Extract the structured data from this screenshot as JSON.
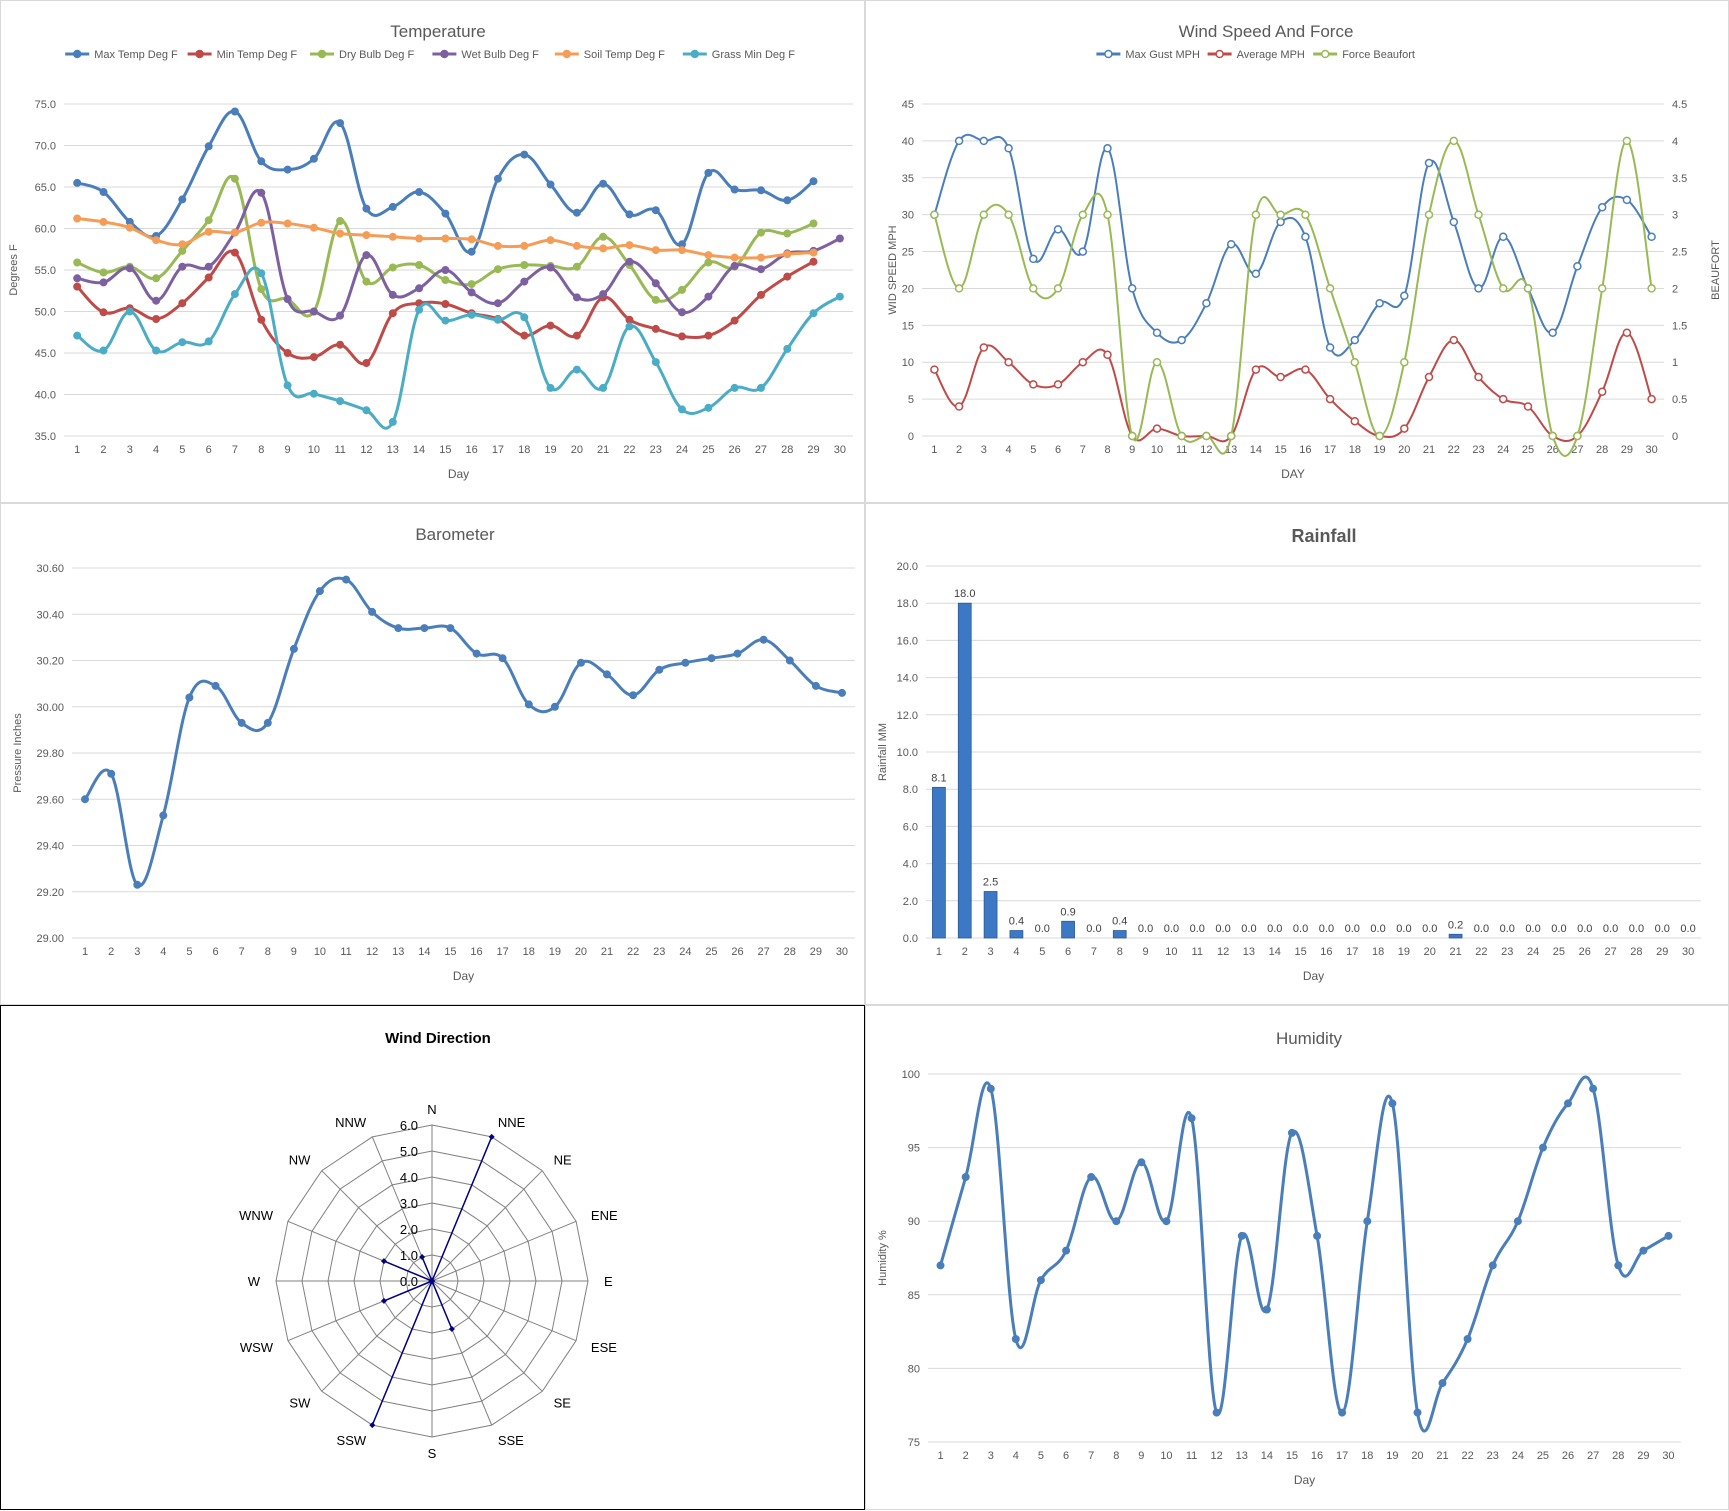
{
  "chart_data": [
    {
      "id": "temp",
      "type": "line",
      "title": "Temperature",
      "xlabel": "Day",
      "ylabel": "Degrees F",
      "categories": [
        1,
        2,
        3,
        4,
        5,
        6,
        7,
        8,
        9,
        10,
        11,
        12,
        13,
        14,
        15,
        16,
        17,
        18,
        19,
        20,
        21,
        22,
        23,
        24,
        25,
        26,
        27,
        28,
        29,
        30
      ],
      "ylim": [
        35,
        75
      ],
      "yticks": [
        "35.0",
        "40.0",
        "45.0",
        "50.0",
        "55.0",
        "60.0",
        "65.0",
        "70.0",
        "75.0"
      ],
      "grid": true,
      "legend": "top",
      "series": [
        {
          "name": "Max Temp Deg F",
          "color": "#4a7ebb",
          "values": [
            65.5,
            64.4,
            60.8,
            59.1,
            63.5,
            69.9,
            74.1,
            68.1,
            67.1,
            68.4,
            72.7,
            62.4,
            62.6,
            64.4,
            61.8,
            57.2,
            66.0,
            68.9,
            65.3,
            61.9,
            65.4,
            61.7,
            62.2,
            58.1,
            66.7,
            64.7,
            64.6,
            63.4,
            65.7,
            null
          ]
        },
        {
          "name": "Min Temp Deg F",
          "color": "#be4b48",
          "values": [
            53.0,
            49.9,
            50.4,
            49.1,
            51.0,
            54.1,
            57.1,
            49.0,
            45.0,
            44.5,
            46.0,
            43.8,
            49.8,
            51.0,
            50.9,
            49.8,
            49.1,
            47.1,
            48.3,
            47.1,
            51.7,
            49.0,
            47.9,
            47.0,
            47.1,
            48.9,
            52.0,
            54.2,
            56.0,
            null
          ]
        },
        {
          "name": "Dry Bulb Deg F",
          "color": "#98b954",
          "values": [
            55.9,
            54.7,
            55.4,
            54.0,
            57.3,
            61.0,
            66.0,
            52.7,
            51.5,
            50.0,
            60.9,
            53.6,
            55.3,
            55.6,
            53.8,
            53.3,
            55.1,
            55.6,
            55.5,
            55.4,
            59.0,
            55.6,
            51.4,
            52.6,
            55.9,
            55.4,
            59.5,
            59.4,
            60.6,
            null
          ]
        },
        {
          "name": "Wet Bulb Deg F",
          "color": "#7d60a0",
          "values": [
            54.0,
            53.5,
            55.2,
            51.3,
            55.4,
            55.4,
            59.5,
            64.3,
            51.5,
            50.0,
            49.5,
            56.8,
            52.0,
            52.8,
            55.0,
            52.3,
            51.0,
            53.6,
            55.3,
            51.7,
            52.1,
            56.0,
            53.4,
            49.9,
            51.8,
            55.5,
            55.1,
            57.0,
            57.3,
            58.8
          ]
        },
        {
          "name": "Soil Temp Deg F",
          "color": "#f59d56",
          "values": [
            61.2,
            60.8,
            60.1,
            58.6,
            58.1,
            59.6,
            59.5,
            60.7,
            60.6,
            60.1,
            59.4,
            59.2,
            59.0,
            58.8,
            58.8,
            58.7,
            57.9,
            57.9,
            58.6,
            57.9,
            57.6,
            58.0,
            57.4,
            57.4,
            56.8,
            56.5,
            56.5,
            56.9,
            57.1,
            null
          ]
        },
        {
          "name": "Grass Min Deg F",
          "color": "#4bacc6",
          "values": [
            47.1,
            45.3,
            50.0,
            45.3,
            46.3,
            46.4,
            52.1,
            54.6,
            41.1,
            40.1,
            39.2,
            38.1,
            36.7,
            50.2,
            48.9,
            49.6,
            49.0,
            49.3,
            40.8,
            43.0,
            40.8,
            48.2,
            43.9,
            38.2,
            38.4,
            40.8,
            40.8,
            45.5,
            49.8,
            51.8
          ]
        }
      ]
    },
    {
      "id": "wind",
      "type": "line",
      "title": "Wind Speed And Force",
      "xlabel": "DAY",
      "ylabel": "WID SPEED MPH",
      "y2label": "BEAUFORT",
      "categories": [
        1,
        2,
        3,
        4,
        5,
        6,
        7,
        8,
        9,
        10,
        11,
        12,
        13,
        14,
        15,
        16,
        17,
        18,
        19,
        20,
        21,
        22,
        23,
        24,
        25,
        26,
        27,
        28,
        29,
        30
      ],
      "ylim": [
        0,
        45
      ],
      "y2lim": [
        0,
        4.5
      ],
      "yticks": [
        "0",
        "5",
        "10",
        "15",
        "20",
        "25",
        "30",
        "35",
        "40",
        "45"
      ],
      "y2ticks": [
        "0",
        "0.5",
        "1",
        "1.5",
        "2",
        "2.5",
        "3",
        "3.5",
        "4",
        "4.5"
      ],
      "grid": true,
      "legend": "top",
      "series": [
        {
          "name": "Max Gust MPH",
          "color": "#4a7ebb",
          "axis": "left",
          "values": [
            30,
            40,
            40,
            39,
            24,
            28,
            25,
            39,
            20,
            14,
            13,
            18,
            26,
            22,
            29,
            27,
            12,
            13,
            18,
            19,
            37,
            29,
            20,
            27,
            20,
            14,
            23,
            31,
            32,
            27
          ]
        },
        {
          "name": "Average MPH",
          "color": "#be4b48",
          "axis": "left",
          "values": [
            9,
            4,
            12,
            10,
            7,
            7,
            10,
            11,
            0,
            1,
            0,
            0,
            0,
            9,
            8,
            9,
            5,
            2,
            0,
            1,
            8,
            13,
            8,
            5,
            4,
            0,
            0,
            6,
            14,
            5
          ]
        },
        {
          "name": "Force Beaufort",
          "color": "#98b954",
          "axis": "right",
          "values": [
            3,
            2,
            3,
            3,
            2,
            2,
            3,
            3,
            0,
            1,
            0,
            0,
            0,
            3,
            3,
            3,
            2,
            1,
            0,
            1,
            3,
            4,
            3,
            2,
            2,
            0,
            0,
            2,
            4,
            2
          ]
        }
      ]
    },
    {
      "id": "baro",
      "type": "line",
      "title": "Barometer",
      "xlabel": "Day",
      "ylabel": "Pressure Inches",
      "categories": [
        1,
        2,
        3,
        4,
        5,
        6,
        7,
        8,
        9,
        10,
        11,
        12,
        13,
        14,
        15,
        16,
        17,
        18,
        19,
        20,
        21,
        22,
        23,
        24,
        25,
        26,
        27,
        28,
        29,
        30
      ],
      "ylim": [
        29.0,
        30.6
      ],
      "yticks": [
        "29.00",
        "29.20",
        "29.40",
        "29.60",
        "29.80",
        "30.00",
        "30.20",
        "30.40",
        "30.60"
      ],
      "grid": true,
      "series": [
        {
          "name": "",
          "color": "#4a7ebb",
          "values": [
            29.6,
            29.71,
            29.23,
            29.53,
            30.04,
            30.09,
            29.93,
            29.93,
            30.25,
            30.5,
            30.55,
            30.41,
            30.34,
            30.34,
            30.34,
            30.23,
            30.21,
            30.01,
            30.0,
            30.19,
            30.14,
            30.05,
            30.16,
            30.19,
            30.21,
            30.23,
            30.29,
            30.2,
            30.09,
            30.06
          ]
        }
      ]
    },
    {
      "id": "rain",
      "type": "bar",
      "title": "Rainfall",
      "xlabel": "Day",
      "ylabel": "Rainfall MM",
      "categories": [
        1,
        2,
        3,
        4,
        5,
        6,
        7,
        8,
        9,
        10,
        11,
        12,
        13,
        14,
        15,
        16,
        17,
        18,
        19,
        20,
        21,
        22,
        23,
        24,
        25,
        26,
        27,
        28,
        29,
        30
      ],
      "ylim": [
        0,
        20
      ],
      "yticks": [
        "0.0",
        "2.0",
        "4.0",
        "6.0",
        "8.0",
        "10.0",
        "12.0",
        "14.0",
        "16.0",
        "18.0",
        "20.0"
      ],
      "grid": true,
      "values": [
        8.1,
        18.0,
        2.5,
        0.4,
        0.0,
        0.9,
        0.0,
        0.4,
        0.0,
        0.0,
        0.0,
        0.0,
        0.0,
        0.0,
        0.0,
        0.0,
        0.0,
        0.0,
        0.0,
        0.0,
        0.2,
        0.0,
        0.0,
        0.0,
        0.0,
        0.0,
        0.0,
        0.0,
        0.0,
        0.0
      ],
      "labels": [
        "8.1",
        "18.0",
        "2.5",
        "0.4",
        "0.0",
        "0.9",
        "0.0",
        "0.4",
        "0.0",
        "0.0",
        "0.0",
        "0.0",
        "0.0",
        "0.0",
        "0.0",
        "0.0",
        "0.0",
        "0.0",
        "0.0",
        "0.0",
        "0.2",
        "0.0",
        "0.0",
        "0.0",
        "0.0",
        "0.0",
        "0.0",
        "0.0",
        "0.0",
        "0.0"
      ],
      "color": "#3c78c3"
    },
    {
      "id": "dir",
      "type": "radar",
      "title": "Wind Direction",
      "categories": [
        "N",
        "NNE",
        "NE",
        "ENE",
        "E",
        "ESE",
        "SE",
        "SSE",
        "S",
        "SSW",
        "SW",
        "WSW",
        "W",
        "WNW",
        "NW",
        "NNW"
      ],
      "ylim": [
        0,
        6
      ],
      "rticks": [
        "0.0",
        "1.0",
        "2.0",
        "3.0",
        "4.0",
        "5.0",
        "6.0"
      ],
      "values": [
        0,
        6,
        0,
        0,
        0,
        0,
        0,
        2,
        0,
        6,
        0,
        2,
        0,
        2,
        0,
        1
      ],
      "color": "#000080"
    },
    {
      "id": "hum",
      "type": "line",
      "title": "Humidity",
      "xlabel": "Day",
      "ylabel": "Humidity %",
      "categories": [
        1,
        2,
        3,
        4,
        5,
        6,
        7,
        8,
        9,
        10,
        11,
        12,
        13,
        14,
        15,
        16,
        17,
        18,
        19,
        20,
        21,
        22,
        23,
        24,
        25,
        26,
        27,
        28,
        29,
        30
      ],
      "ylim": [
        75,
        100
      ],
      "yticks": [
        "75",
        "80",
        "85",
        "90",
        "95",
        "100"
      ],
      "grid": true,
      "series": [
        {
          "name": "",
          "color": "#4a7ebb",
          "values": [
            87,
            93,
            99,
            82,
            86,
            88,
            93,
            90,
            94,
            90,
            97,
            77,
            89,
            84,
            96,
            89,
            77,
            90,
            98,
            77,
            79,
            82,
            87,
            90,
            95,
            98,
            99,
            87,
            88,
            89
          ]
        }
      ]
    }
  ]
}
